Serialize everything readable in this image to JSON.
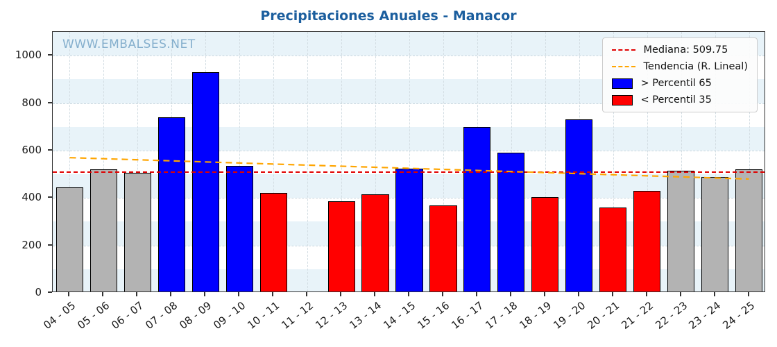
{
  "chart_data": {
    "type": "bar",
    "title": "Precipitaciones Anuales - Manacor",
    "watermark": "WWW.EMBALSES.NET",
    "categories": [
      "04 - 05",
      "05 - 06",
      "06 - 07",
      "07 - 08",
      "08 - 09",
      "09 - 10",
      "10 - 11",
      "11 - 12",
      "12 - 13",
      "13 - 14",
      "14 - 15",
      "15 - 16",
      "16 - 17",
      "17 - 18",
      "18 - 19",
      "19 - 20",
      "20 - 21",
      "21 - 22",
      "22 - 23",
      "23 - 24",
      "24 - 25"
    ],
    "values": [
      445,
      520,
      505,
      740,
      930,
      535,
      420,
      null,
      385,
      415,
      525,
      370,
      700,
      590,
      405,
      730,
      360,
      430,
      515,
      490,
      520
    ],
    "bar_classes": [
      "gray",
      "gray",
      "gray",
      "blue",
      "blue",
      "blue",
      "red",
      null,
      "red",
      "red",
      "blue",
      "red",
      "blue",
      "blue",
      "red",
      "blue",
      "red",
      "red",
      "gray",
      "gray",
      "gray"
    ],
    "median": {
      "label": "Mediana: 509.75",
      "value": 509.75
    },
    "trend": {
      "label": "Tendencia (R. Lineal)",
      "start": 570,
      "end": 480
    },
    "legend": {
      "p65_label": "> Percentil 65",
      "p35_label": "< Percentil 35"
    },
    "ylim": [
      0,
      1100
    ],
    "yticks": [
      0,
      200,
      400,
      600,
      800,
      1000
    ],
    "band_step": 100,
    "xlabel": "",
    "ylabel": "",
    "colors": {
      "blue": "#0000ff",
      "red": "#ff0000",
      "gray": "#b3b3b3",
      "median_line": "#e00000",
      "trend_line": "#ffa500",
      "band": "#e8f3f9",
      "title": "#1b5e9e",
      "watermark": "#85afcd"
    },
    "legend_position": "top-right",
    "grid": true
  }
}
